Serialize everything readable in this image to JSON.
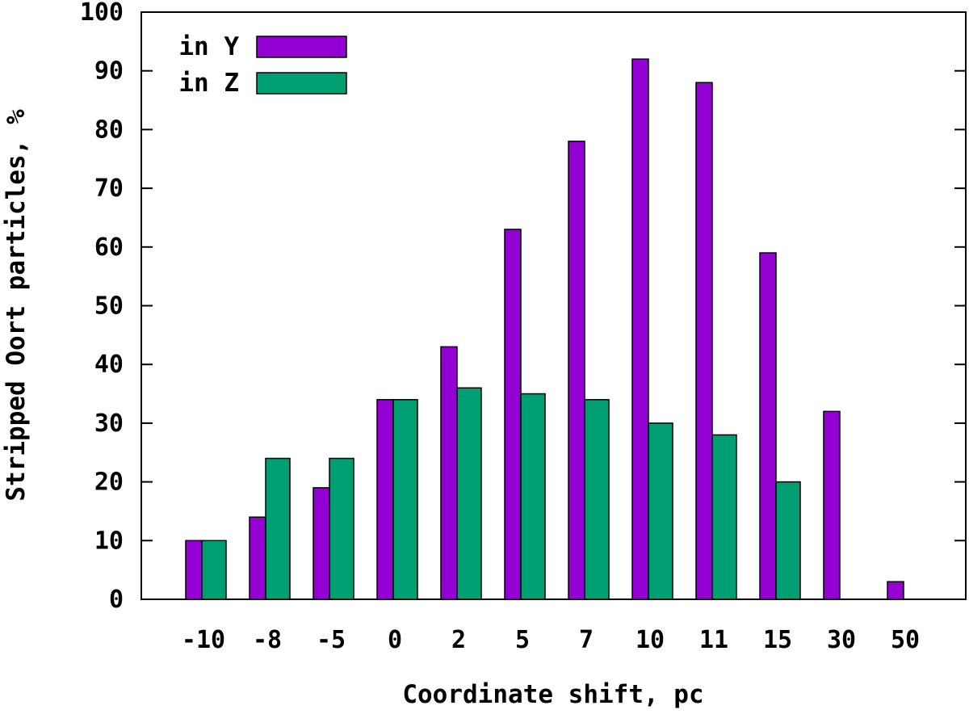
{
  "chart_data": {
    "type": "bar",
    "xlabel": "Coordinate shift, pc",
    "ylabel": "Stripped Oort particles, %",
    "categories": [
      "-10",
      "-8",
      "-5",
      "0",
      "2",
      "5",
      "7",
      "10",
      "11",
      "15",
      "30",
      "50"
    ],
    "series": [
      {
        "name": "in Y",
        "color": "#9400d3",
        "values": [
          10,
          14,
          19,
          34,
          43,
          63,
          78,
          92,
          88,
          59,
          32,
          3
        ]
      },
      {
        "name": "in Z",
        "color": "#009e73",
        "values": [
          10,
          24,
          24,
          34,
          36,
          35,
          34,
          30,
          28,
          20,
          0,
          0
        ]
      }
    ],
    "ylim": [
      0,
      100
    ],
    "yticks": [
      "0",
      "10",
      "20",
      "30",
      "40",
      "50",
      "60",
      "70",
      "80",
      "90",
      "100"
    ],
    "grid": false,
    "legend_position": "top-left"
  }
}
